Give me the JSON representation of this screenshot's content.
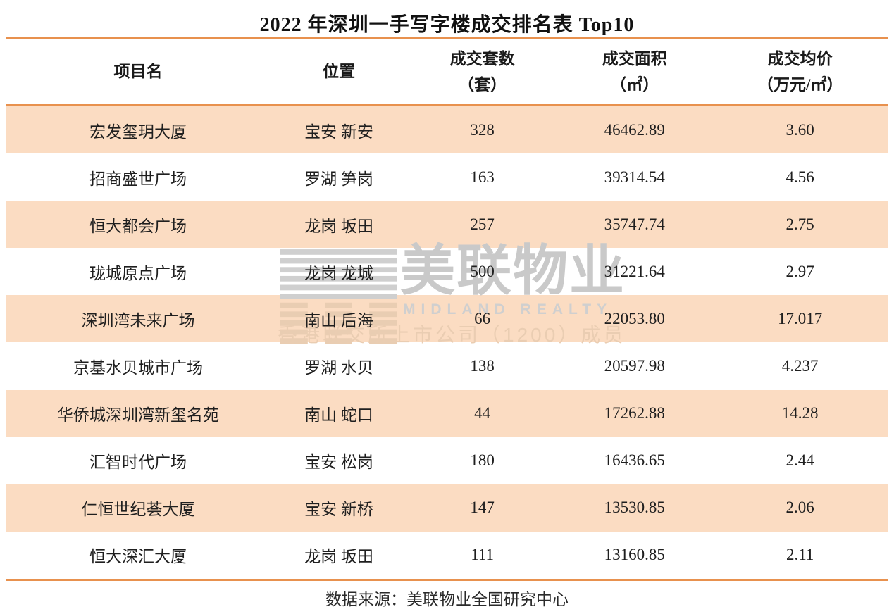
{
  "chart_data": {
    "type": "table",
    "title": "2022 年深圳一手写字楼成交排名表 Top10",
    "columns": [
      {
        "label": "项目名",
        "unit": ""
      },
      {
        "label": "位置",
        "unit": ""
      },
      {
        "label": "成交套数",
        "unit": "（套）"
      },
      {
        "label": "成交面积",
        "unit": "（㎡）"
      },
      {
        "label": "成交均价",
        "unit": "（万元/㎡）"
      }
    ],
    "rows": [
      [
        "宏发玺玥大厦",
        "宝安 新安",
        "328",
        "46462.89",
        "3.60"
      ],
      [
        "招商盛世广场",
        "罗湖 笋岗",
        "163",
        "39314.54",
        "4.56"
      ],
      [
        "恒大都会广场",
        "龙岗 坂田",
        "257",
        "35747.74",
        "2.75"
      ],
      [
        "珑城原点广场",
        "龙岗 龙城",
        "500",
        "31221.64",
        "2.97"
      ],
      [
        "深圳湾未来广场",
        "南山 后海",
        "66",
        "22053.80",
        "17.017"
      ],
      [
        "京基水贝城市广场",
        "罗湖 水贝",
        "138",
        "20597.98",
        "4.237"
      ],
      [
        "华侨城深圳湾新玺名苑",
        "南山 蛇口",
        "44",
        "17262.88",
        "14.28"
      ],
      [
        "汇智时代广场",
        "宝安 松岗",
        "180",
        "16436.65",
        "2.44"
      ],
      [
        "仁恒世纪荟大厦",
        "宝安 新桥",
        "147",
        "13530.85",
        "2.06"
      ],
      [
        "恒大深汇大厦",
        "龙岗 坂田",
        "111",
        "13160.85",
        "2.11"
      ]
    ],
    "source": "数据来源：美联物业全国研究中心",
    "layout": {
      "row_striping": "odd rows peach, even rows white",
      "rules": "orange horizontal rules above header, below header, below last row"
    }
  },
  "watermark": {
    "logo_icon": "midland-stripes-logo",
    "name_cn": "美联物业",
    "name_en": "MIDLAND REALTY",
    "tagline": "香港联交所上市公司（1200）成员"
  },
  "colors": {
    "accent_rule": "#E8914E",
    "row_peach": "#FBDCC2",
    "watermark_gray": "#C9C9C9",
    "watermark_peach": "#EACDB2",
    "text": "#1f1f1f"
  }
}
